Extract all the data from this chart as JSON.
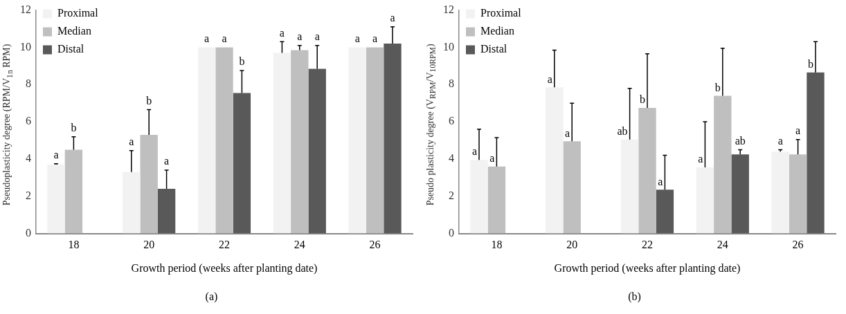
{
  "chart_data": [
    {
      "type": "bar",
      "xlabel": "Growth period (weeks after planting date)",
      "ylabel": "Pseudoplasticity degree (RPM/V$_{1n}$ RPM)",
      "categories": [
        "18",
        "20",
        "22",
        "24",
        "26"
      ],
      "ylim": [
        0,
        12
      ],
      "yticks": [
        0,
        2,
        4,
        6,
        8,
        10,
        12
      ],
      "legend": "top left",
      "annotations": [
        "(a)"
      ],
      "series": [
        {
          "name": "Proximal",
          "color": "#f2f2f2",
          "values": [
            3.7,
            3.3,
            10,
            9.7,
            10
          ],
          "errors": [
            [
              3.7,
              3.75
            ],
            [
              3.3,
              4.45
            ],
            null,
            [
              9.7,
              10.3
            ],
            null
          ],
          "value_labels": [
            "a",
            "a",
            "a",
            "a",
            "a"
          ]
        },
        {
          "name": "Median",
          "color": "#bfbfbf",
          "values": [
            4.5,
            5.3,
            10,
            9.85,
            10
          ],
          "errors": [
            [
              4.5,
              5.2
            ],
            [
              5.3,
              6.65
            ],
            null,
            [
              9.85,
              10.1
            ],
            null
          ],
          "value_labels": [
            "b",
            "b",
            "a",
            "a",
            "a"
          ]
        },
        {
          "name": "Distal",
          "color": "#595959",
          "values": [
            null,
            2.4,
            7.55,
            8.85,
            10.2
          ],
          "errors": [
            null,
            [
              2.4,
              3.4
            ],
            [
              7.55,
              8.75
            ],
            [
              8.85,
              10.1
            ],
            [
              10.2,
              11.1
            ]
          ],
          "value_labels": [
            null,
            "a",
            "b",
            "a",
            "a"
          ]
        }
      ]
    },
    {
      "type": "bar",
      "xlabel": "Growth period (weeks after planting date)",
      "ylabel": "Pseudo plasticity degree (V$_{RPM}$/V$_{10RPM}$)",
      "categories": [
        "18",
        "20",
        "22",
        "24",
        "26"
      ],
      "ylim": [
        0,
        12
      ],
      "yticks": [
        0,
        2,
        4,
        6,
        8,
        10,
        12
      ],
      "legend": "top left",
      "annotations": [
        "(b)"
      ],
      "series": [
        {
          "name": "Proximal",
          "color": "#f2f2f2",
          "values": [
            3.95,
            7.85,
            5.05,
            3.55,
            4.4
          ],
          "errors": [
            [
              3.95,
              5.6
            ],
            [
              7.85,
              9.85
            ],
            [
              5.05,
              7.8
            ],
            [
              3.55,
              6
            ],
            [
              4.4,
              4.5
            ]
          ],
          "value_labels": [
            "a",
            "a",
            "ab",
            "a",
            "a"
          ]
        },
        {
          "name": "Median",
          "color": "#bfbfbf",
          "values": [
            3.6,
            4.95,
            6.75,
            7.4,
            4.25
          ],
          "errors": [
            [
              3.6,
              5.15
            ],
            [
              4.95,
              7
            ],
            [
              6.75,
              9.65
            ],
            [
              7.4,
              9.95
            ],
            [
              4.25,
              5.05
            ]
          ],
          "value_labels": [
            "a",
            "a",
            "b",
            "b",
            "a"
          ]
        },
        {
          "name": "Distal",
          "color": "#595959",
          "values": [
            null,
            null,
            2.35,
            4.25,
            8.65
          ],
          "errors": [
            null,
            null,
            [
              2.35,
              4.2
            ],
            [
              4.25,
              4.5
            ],
            [
              8.65,
              10.3
            ]
          ],
          "value_labels": [
            null,
            null,
            "a",
            "ab",
            "b"
          ]
        }
      ]
    }
  ]
}
